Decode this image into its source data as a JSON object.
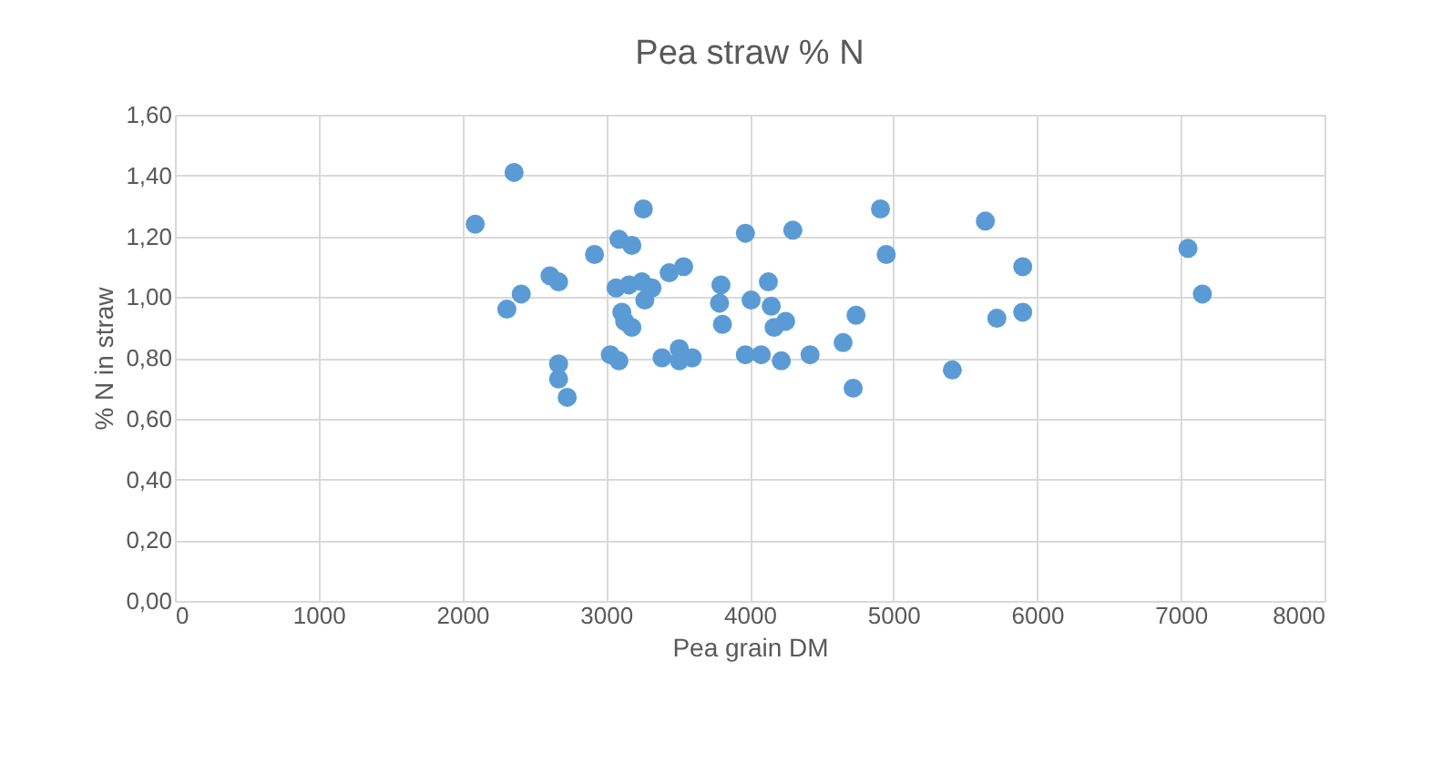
{
  "chart_data": {
    "type": "scatter",
    "title": "Pea straw % N",
    "xlabel": "Pea grain DM",
    "ylabel": "% N in straw",
    "marker": "circle",
    "grid": true,
    "x": [
      2360,
      2090,
      2410,
      2310,
      2610,
      2670,
      2920,
      2670,
      2670,
      2730,
      3090,
      3180,
      3260,
      3070,
      3160,
      3250,
      3270,
      3320,
      3110,
      3130,
      3180,
      3030,
      3090,
      3440,
      3540,
      3390,
      3510,
      3510,
      3600,
      3970,
      3800,
      3790,
      3810,
      3970,
      4080,
      4220,
      4010,
      4130,
      4150,
      4170,
      4250,
      4300,
      4910,
      4950,
      4420,
      4650,
      4720,
      4740,
      5640,
      5410,
      5720,
      5900,
      5900,
      7050,
      7150
    ],
    "series": [
      {
        "color": "#5b9bd5",
        "values": [
          1.41,
          1.24,
          1.01,
          0.96,
          1.07,
          1.05,
          1.14,
          0.78,
          0.73,
          0.67,
          1.19,
          1.17,
          1.29,
          1.03,
          1.04,
          1.05,
          0.99,
          1.03,
          0.95,
          0.92,
          0.9,
          0.81,
          0.79,
          1.08,
          1.1,
          0.8,
          0.83,
          0.79,
          0.8,
          1.21,
          1.04,
          0.98,
          0.91,
          0.81,
          0.81,
          0.79,
          0.99,
          1.05,
          0.97,
          0.9,
          0.92,
          1.22,
          1.29,
          1.14,
          0.81,
          0.85,
          0.7,
          0.94,
          1.25,
          0.76,
          0.93,
          1.1,
          0.95,
          1.16,
          1.01
        ]
      }
    ],
    "xlim": [
      0,
      8000
    ],
    "xticks": [
      0,
      1000,
      2000,
      3000,
      4000,
      5000,
      6000,
      7000,
      8000
    ],
    "ylim": [
      0,
      1.6
    ],
    "yticks": [
      {
        "value": 0,
        "label": "0,00"
      },
      {
        "value": 0.2,
        "label": "0,20"
      },
      {
        "value": 0.4,
        "label": "0,40"
      },
      {
        "value": 0.6,
        "label": "0,60"
      },
      {
        "value": 0.8,
        "label": "0,80"
      },
      {
        "value": 1,
        "label": "1,00"
      },
      {
        "value": 1.2,
        "label": "1,20"
      },
      {
        "value": 1.4,
        "label": "1,40"
      },
      {
        "value": 1.6,
        "label": "1,60"
      }
    ]
  }
}
